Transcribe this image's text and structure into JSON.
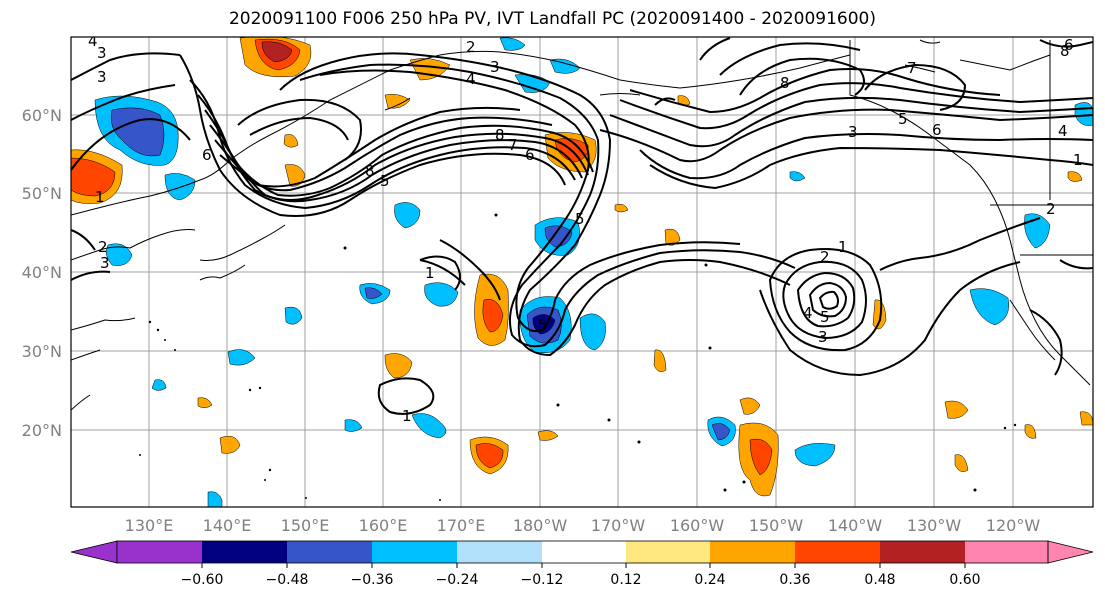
{
  "title": "2020091100 F006 250 hPa PV, IVT Landfall PC (2020091400 - 2020091600)",
  "lat_labels": [
    "60°N",
    "50°N",
    "40°N",
    "30°N",
    "20°N"
  ],
  "lon_labels": [
    "130°E",
    "140°E",
    "150°E",
    "160°E",
    "170°E",
    "180°W",
    "170°W",
    "160°W",
    "150°W",
    "140°W",
    "130°W",
    "120°W"
  ],
  "colorbar": {
    "ticks": [
      "−0.60",
      "−0.48",
      "−0.36",
      "−0.24",
      "−0.12",
      "0.12",
      "0.24",
      "0.36",
      "0.48",
      "0.60"
    ],
    "colors": [
      "#9932cc",
      "#000080",
      "#3655c8",
      "#00bfff",
      "#b0e0fa",
      "#ffffff",
      "#ffe880",
      "#ffa500",
      "#ff4500",
      "#b22222",
      "#ff85b0"
    ]
  },
  "contour_labels": [
    "4",
    "3",
    "2",
    "3",
    "3",
    "4",
    "1",
    "8",
    "7",
    "6",
    "8",
    "5",
    "5",
    "6",
    "8",
    "5",
    "7",
    "6",
    "3",
    "8",
    "6",
    "4",
    "1",
    "2",
    "2",
    "1",
    "3",
    "1",
    "2",
    "5",
    "5",
    "4",
    "3",
    "1"
  ]
}
